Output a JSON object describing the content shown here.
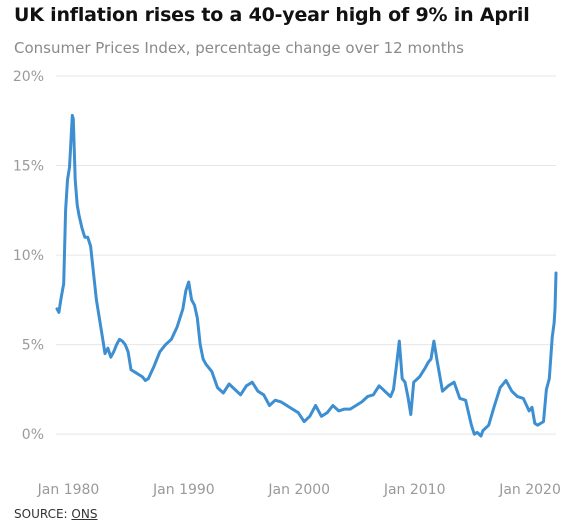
{
  "header": {
    "title": "UK inflation rises to a 40-year high of 9% in April",
    "subtitle": "Consumer Prices Index, percentage change over 12 months"
  },
  "footer": {
    "source_label": "SOURCE:",
    "source_link": "ONS"
  },
  "colors": {
    "line": "#3d8fd1",
    "grid": "#e6e6e6",
    "tick_text": "#9a9a9a"
  },
  "chart_data": {
    "type": "line",
    "title": "UK inflation rises to a 40-year high of 9% in April",
    "subtitle": "Consumer Prices Index, percentage change over 12 months",
    "xlabel": "",
    "ylabel": "",
    "xlim": [
      "1978-12",
      "2022-04"
    ],
    "ylim": [
      -2,
      20
    ],
    "yticks": [
      0,
      5,
      10,
      15,
      20
    ],
    "ytick_labels": [
      "0%",
      "5%",
      "10%",
      "15%",
      "20%"
    ],
    "xticks": [
      "1980-01",
      "1990-01",
      "2000-01",
      "2010-01",
      "2020-01"
    ],
    "xtick_labels": [
      "Jan 1980",
      "Jan 1990",
      "Jan 2000",
      "Jan 2010",
      "Jan 2020"
    ],
    "grid": true,
    "legend": "none",
    "series": [
      {
        "x": [
          "1979-01",
          "1979-03",
          "1979-05",
          "1979-07",
          "1979-08",
          "1979-10",
          "1979-12",
          "1980-02",
          "1980-03",
          "1980-05",
          "1980-06",
          "1980-08",
          "1980-10",
          "1980-12",
          "1981-03",
          "1981-06",
          "1981-09",
          "1981-12",
          "1982-03",
          "1982-06",
          "1982-09",
          "1982-12",
          "1983-03",
          "1983-06",
          "1983-09",
          "1983-12",
          "1984-03",
          "1984-06",
          "1984-09",
          "1984-12",
          "1985-03",
          "1985-06",
          "1985-09",
          "1985-12",
          "1986-03",
          "1986-06",
          "1986-09",
          "1986-12",
          "1987-06",
          "1987-12",
          "1988-06",
          "1988-12",
          "1989-06",
          "1989-12",
          "1990-03",
          "1990-06",
          "1990-09",
          "1990-12",
          "1991-03",
          "1991-06",
          "1991-09",
          "1991-12",
          "1992-06",
          "1992-12",
          "1993-06",
          "1993-12",
          "1994-06",
          "1994-12",
          "1995-06",
          "1995-12",
          "1996-06",
          "1996-12",
          "1997-06",
          "1997-12",
          "1998-06",
          "1998-12",
          "1999-06",
          "1999-12",
          "2000-06",
          "2000-12",
          "2001-06",
          "2001-12",
          "2002-06",
          "2002-12",
          "2003-06",
          "2003-12",
          "2004-06",
          "2004-12",
          "2005-06",
          "2005-12",
          "2006-06",
          "2006-12",
          "2007-06",
          "2007-12",
          "2008-03",
          "2008-06",
          "2008-09",
          "2008-12",
          "2009-03",
          "2009-06",
          "2009-09",
          "2009-12",
          "2010-06",
          "2010-12",
          "2011-03",
          "2011-06",
          "2011-09",
          "2011-12",
          "2012-06",
          "2012-12",
          "2013-06",
          "2013-12",
          "2014-06",
          "2014-12",
          "2015-03",
          "2015-06",
          "2015-10",
          "2015-12",
          "2016-06",
          "2016-12",
          "2017-06",
          "2017-12",
          "2018-06",
          "2018-12",
          "2019-06",
          "2019-12",
          "2020-03",
          "2020-06",
          "2020-09",
          "2020-12",
          "2021-03",
          "2021-06",
          "2021-09",
          "2021-12",
          "2022-02",
          "2022-03",
          "2022-04"
        ],
        "values": [
          7.0,
          6.8,
          7.5,
          8.1,
          8.4,
          12.5,
          14.2,
          14.9,
          15.8,
          17.8,
          17.6,
          14.2,
          12.8,
          12.2,
          11.5,
          11.0,
          11.0,
          10.5,
          9.0,
          7.5,
          6.5,
          5.5,
          4.5,
          4.8,
          4.3,
          4.6,
          5.0,
          5.3,
          5.2,
          5.0,
          4.6,
          3.6,
          3.5,
          3.4,
          3.3,
          3.2,
          3.0,
          3.1,
          3.8,
          4.6,
          5.0,
          5.3,
          6.0,
          7.0,
          8.0,
          8.5,
          7.5,
          7.2,
          6.5,
          5.0,
          4.2,
          3.9,
          3.5,
          2.6,
          2.3,
          2.8,
          2.5,
          2.2,
          2.7,
          2.9,
          2.4,
          2.2,
          1.6,
          1.9,
          1.8,
          1.6,
          1.4,
          1.2,
          0.7,
          1.0,
          1.6,
          1.0,
          1.2,
          1.6,
          1.3,
          1.4,
          1.4,
          1.6,
          1.8,
          2.1,
          2.2,
          2.7,
          2.4,
          2.1,
          2.5,
          3.8,
          5.2,
          3.1,
          2.9,
          2.1,
          1.1,
          2.9,
          3.2,
          3.7,
          4.0,
          4.2,
          5.2,
          4.2,
          2.4,
          2.7,
          2.9,
          2.0,
          1.9,
          0.5,
          0.0,
          0.1,
          -0.1,
          0.2,
          0.5,
          1.6,
          2.6,
          3.0,
          2.4,
          2.1,
          2.0,
          1.3,
          1.5,
          0.6,
          0.5,
          0.6,
          0.7,
          2.5,
          3.1,
          5.4,
          6.2,
          7.0,
          9.0
        ]
      }
    ]
  }
}
